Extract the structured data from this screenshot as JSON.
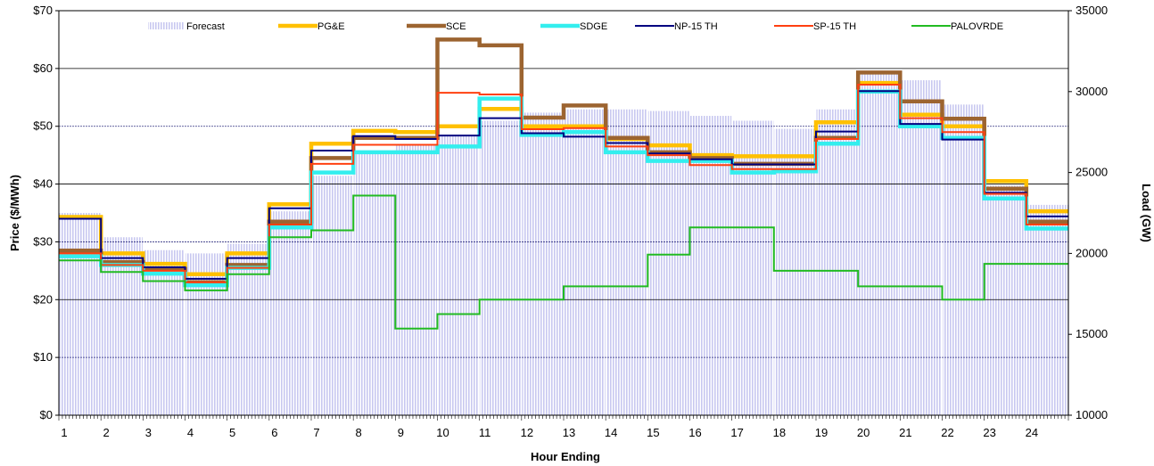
{
  "chart_data": {
    "type": "line",
    "title": "",
    "xlabel": "Hour Ending",
    "ylabel_left": "Price ($/MWh)",
    "ylabel_right": "Load (GW)",
    "x": [
      1,
      2,
      3,
      4,
      5,
      6,
      7,
      8,
      9,
      10,
      11,
      12,
      13,
      14,
      15,
      16,
      17,
      18,
      19,
      20,
      21,
      22,
      23,
      24
    ],
    "x_tick_labels": [
      "1",
      "2",
      "3",
      "4",
      "5",
      "6",
      "7",
      "8",
      "9",
      "10",
      "11",
      "12",
      "13",
      "14",
      "15",
      "16",
      "17",
      "18",
      "19",
      "20",
      "21",
      "22",
      "23",
      "24"
    ],
    "y_left": {
      "range": [
        0,
        70
      ],
      "ticks": [
        0,
        10,
        20,
        30,
        40,
        50,
        60,
        70
      ],
      "tick_labels": [
        "$0",
        "$10",
        "$20",
        "$30",
        "$40",
        "$50",
        "$60",
        "$70"
      ]
    },
    "y_right": {
      "range": [
        10000,
        35000
      ],
      "ticks": [
        10000,
        15000,
        20000,
        25000,
        30000,
        35000
      ],
      "tick_labels": [
        "10000",
        "15000",
        "20000",
        "25000",
        "30000",
        "35000"
      ]
    },
    "grid": true,
    "legend_position": "top",
    "forecast": {
      "name": "Forecast",
      "color": "#c8c8f0",
      "axis": "right",
      "values": [
        22500,
        21000,
        20200,
        20000,
        20600,
        22600,
        24800,
        26200,
        26700,
        27300,
        28200,
        28700,
        28900,
        28900,
        28800,
        28500,
        28200,
        27700,
        28900,
        31200,
        30700,
        29200,
        24200,
        23000
      ]
    },
    "series": [
      {
        "name": "PG&E",
        "color": "#ffc000",
        "width": 4.5,
        "values": [
          34.3,
          28.0,
          26.2,
          24.4,
          28.0,
          36.5,
          47.0,
          49.2,
          49.0,
          50.0,
          53.0,
          50.0,
          50.0,
          47.8,
          46.7,
          45.0,
          44.8,
          44.8,
          50.7,
          57.5,
          52.0,
          50.0,
          40.5,
          35.3
        ]
      },
      {
        "name": "SCE",
        "color": "#9c6430",
        "width": 4.5,
        "values": [
          28.5,
          26.5,
          25.3,
          23.0,
          26.0,
          33.5,
          44.5,
          48.0,
          48.0,
          65.0,
          64.0,
          51.5,
          53.6,
          48.0,
          45.5,
          44.5,
          43.5,
          43.5,
          48.0,
          59.3,
          54.3,
          51.3,
          39.2,
          33.5
        ]
      },
      {
        "name": "SDGE",
        "color": "#33eeee",
        "width": 4.5,
        "values": [
          27.5,
          26.0,
          24.5,
          22.5,
          25.5,
          32.5,
          42.0,
          45.5,
          45.5,
          46.5,
          54.8,
          48.5,
          49.0,
          45.5,
          44.0,
          44.0,
          42.0,
          42.2,
          47.0,
          56.0,
          50.0,
          48.0,
          37.5,
          32.3
        ]
      },
      {
        "name": "NP-15 TH",
        "color": "#000080",
        "width": 2,
        "values": [
          34.0,
          27.2,
          25.6,
          23.6,
          27.2,
          35.8,
          45.8,
          48.3,
          47.8,
          48.4,
          51.4,
          48.8,
          48.2,
          47.1,
          45.3,
          44.3,
          43.4,
          43.4,
          49.1,
          56.1,
          50.4,
          47.7,
          38.5,
          34.4
        ]
      },
      {
        "name": "SP-15 TH",
        "color": "#ff4010",
        "width": 2,
        "values": [
          28.0,
          26.0,
          25.0,
          23.0,
          25.5,
          33.0,
          43.5,
          46.8,
          46.8,
          55.8,
          55.5,
          49.5,
          49.7,
          46.5,
          45.0,
          43.3,
          42.6,
          42.6,
          47.8,
          57.2,
          51.4,
          49.0,
          38.3,
          33.0
        ]
      },
      {
        "name": "PALOVRDE",
        "color": "#22bb22",
        "width": 2,
        "values": [
          26.8,
          24.8,
          23.2,
          21.6,
          24.4,
          30.8,
          32.0,
          38.0,
          15.0,
          17.5,
          20.0,
          20.0,
          22.3,
          22.3,
          27.8,
          32.5,
          32.5,
          25.0,
          25.0,
          22.3,
          22.3,
          20.0,
          26.2,
          26.2
        ]
      }
    ]
  }
}
